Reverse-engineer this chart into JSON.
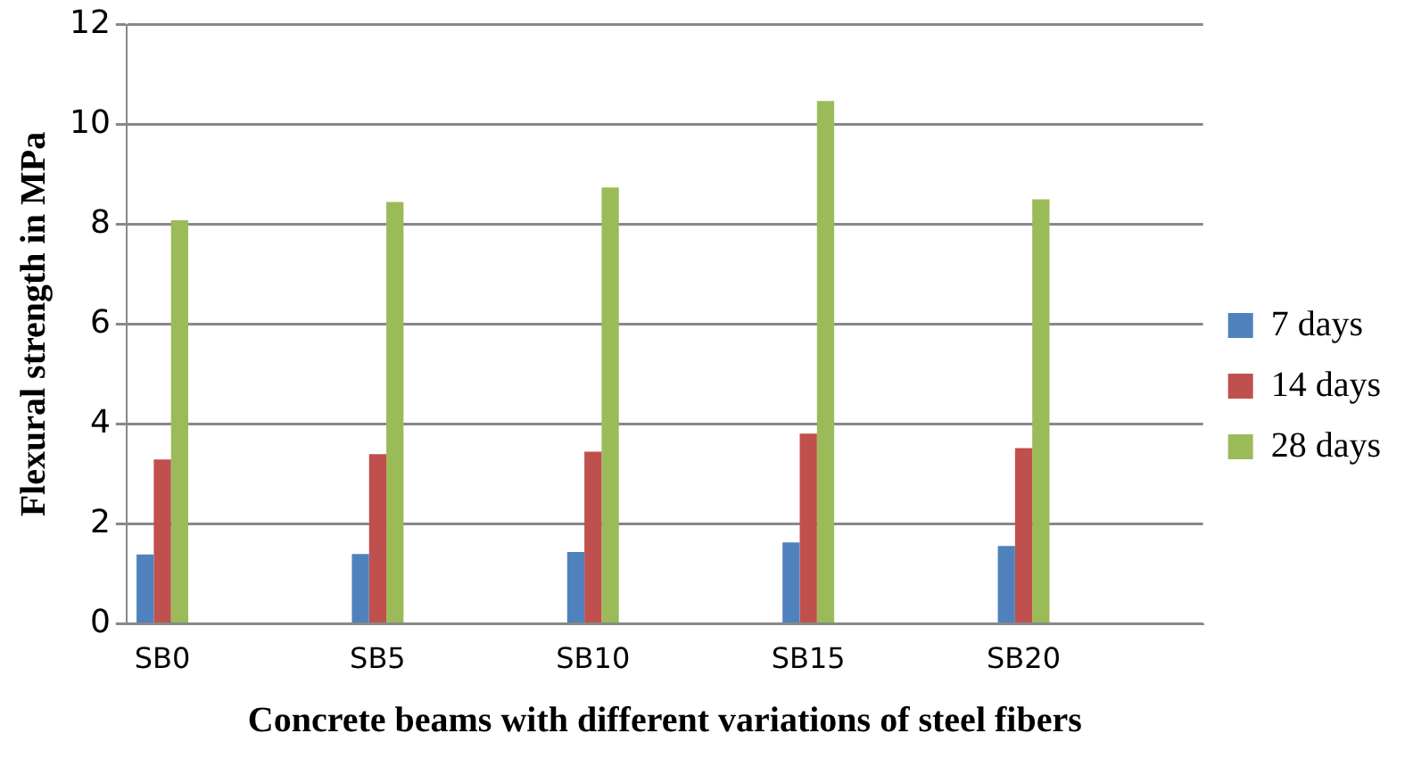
{
  "chart_data": {
    "type": "bar",
    "xlabel": "Concrete beams with different variations of steel fibers",
    "ylabel": "Flexural strength in MPa",
    "categories": [
      "SB0",
      null,
      null,
      "SB5",
      null,
      null,
      "SB10",
      null,
      null,
      "SB15",
      null,
      null,
      "SB20",
      null,
      null
    ],
    "series": [
      {
        "name": "7 days",
        "color": "#4f81bd",
        "values": [
          1.39,
          null,
          null,
          1.4,
          null,
          null,
          1.44,
          null,
          null,
          1.63,
          null,
          null,
          1.56,
          null,
          null
        ]
      },
      {
        "name": "14 days",
        "color": "#c0504d",
        "values": [
          3.29,
          null,
          null,
          3.4,
          null,
          null,
          3.45,
          null,
          null,
          3.81,
          null,
          null,
          3.52,
          null,
          null
        ]
      },
      {
        "name": "28 days",
        "color": "#9bbb59",
        "values": [
          8.08,
          null,
          null,
          8.45,
          null,
          null,
          8.74,
          null,
          null,
          10.47,
          null,
          null,
          8.5,
          null,
          null
        ]
      }
    ],
    "ylim": [
      0,
      12
    ],
    "yticks": [
      0,
      2,
      4,
      6,
      8,
      10,
      12
    ],
    "grid": "y",
    "legend": "right"
  }
}
